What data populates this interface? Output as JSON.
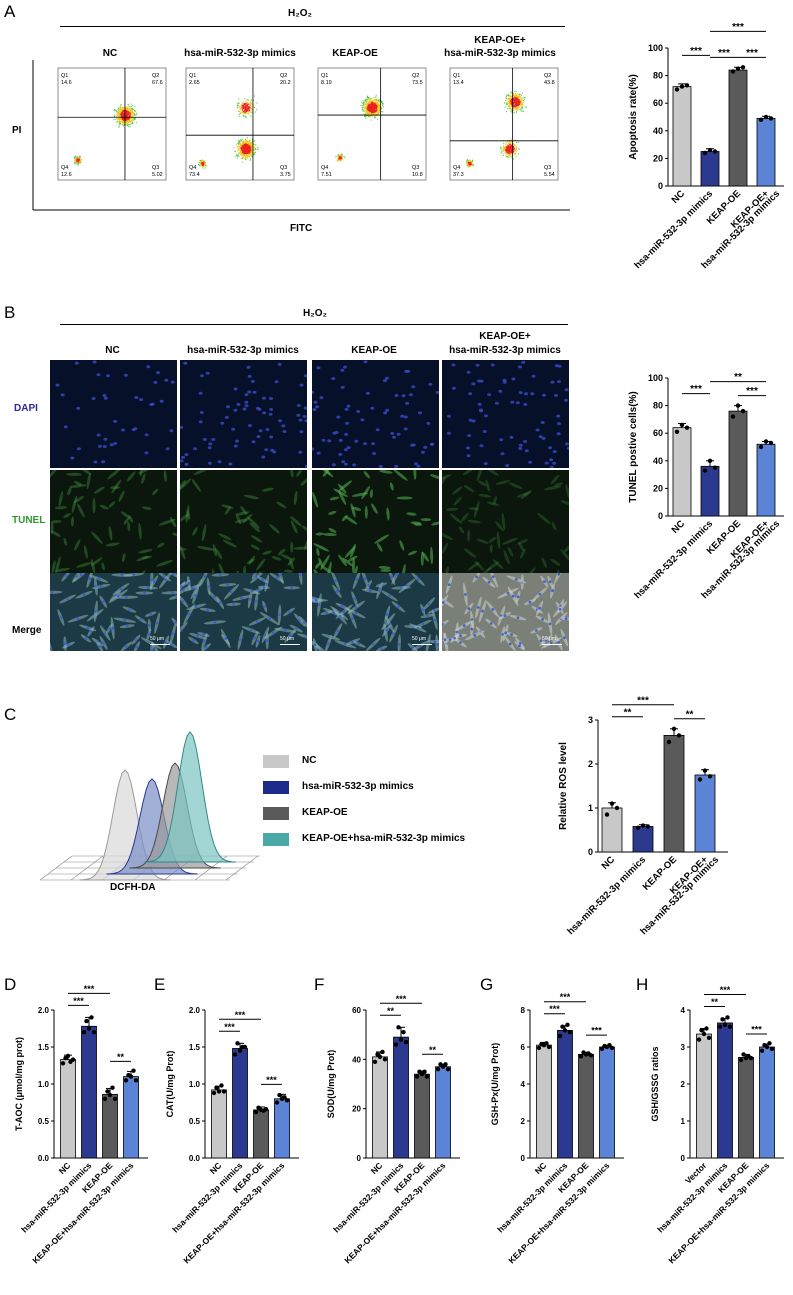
{
  "panels": {
    "A": "A",
    "B": "B",
    "C": "C",
    "D": "D",
    "E": "E",
    "F": "F",
    "G": "G",
    "H": "H"
  },
  "treatment_header": "H₂O₂",
  "groups": {
    "nc": "NC",
    "mimics": "hsa-miR-532-3p mimics",
    "keap": "KEAP-OE",
    "combo_line1": "KEAP-OE+",
    "combo_line2": "hsa-miR-532-3p mimics"
  },
  "flow": {
    "y_axis": "PI",
    "x_axis": "FITC",
    "plots": [
      {
        "q1": "Q1",
        "q1v": "14.6",
        "q2": "Q2",
        "q2v": "67.6",
        "q3": "Q3",
        "q3v": "5.02",
        "q4": "Q4",
        "q4v": "12.6"
      },
      {
        "q1": "Q1",
        "q1v": "2.65",
        "q2": "Q2",
        "q2v": "20.2",
        "q3": "Q3",
        "q3v": "3.75",
        "q4": "Q4",
        "q4v": "73.4"
      },
      {
        "q1": "Q1",
        "q1v": "8.19",
        "q2": "Q2",
        "q2v": "73.5",
        "q3": "Q3",
        "q3v": "10.8",
        "q4": "Q4",
        "q4v": "7.51"
      },
      {
        "q1": "Q1",
        "q1v": "13.4",
        "q2": "Q2",
        "q2v": "43.8",
        "q3": "Q3",
        "q3v": "5.54",
        "q4": "Q4",
        "q4v": "37.3"
      }
    ]
  },
  "tunel_rows": {
    "dapi": "DAPI",
    "tunel": "TUNEL",
    "merge": "Merge",
    "scale": "50 μm"
  },
  "ros_legend": {
    "nc": "NC",
    "mimics": "hsa-miR-532-3p mimics",
    "keap": "KEAP-OE",
    "combo": "KEAP-OE+hsa-miR-532-3p mimics",
    "xlabel": "DCFH-DA"
  },
  "colors": {
    "nc": "#c8c8c8",
    "mimics": "#2b3a8f",
    "keap": "#5a5a5a",
    "combo": "#5b84d6",
    "ros_combo": "#4aa8a6"
  },
  "chart_data": [
    {
      "id": "apoptosis",
      "type": "bar",
      "categories": [
        "NC",
        "hsa-miR-532-3p mimics",
        "KEAP-OE",
        "KEAP-OE+ hsa-miR-532-3p mimics"
      ],
      "values": [
        72,
        25,
        84,
        49
      ],
      "errors": [
        2,
        2,
        2,
        1.5
      ],
      "points": [
        [
          70,
          72,
          73
        ],
        [
          24,
          26,
          25
        ],
        [
          83,
          85,
          86
        ],
        [
          48,
          50,
          49
        ]
      ],
      "ylabel": "Apoptosis rate(%)",
      "ylim": [
        0,
        100
      ],
      "yticks": [
        0,
        20,
        40,
        60,
        80,
        100
      ],
      "sig": [
        [
          "0",
          "1",
          "***"
        ],
        [
          "1",
          "2",
          "***"
        ],
        [
          "1",
          "3",
          "***"
        ],
        [
          "2",
          "3",
          "***"
        ]
      ]
    },
    {
      "id": "tunel",
      "type": "bar",
      "categories": [
        "NC",
        "hsa-miR-532-3p mimics",
        "KEAP-OE",
        "KEAP-OE+ hsa-miR-532-3p mimics"
      ],
      "values": [
        64,
        36,
        76,
        52
      ],
      "errors": [
        3,
        4,
        4,
        2
      ],
      "points": [
        [
          61,
          66,
          64
        ],
        [
          33,
          40,
          35
        ],
        [
          72,
          80,
          76
        ],
        [
          50,
          54,
          53
        ]
      ],
      "ylabel": "TUNEL postive cells(%)",
      "ylim": [
        0,
        100
      ],
      "yticks": [
        0,
        20,
        40,
        60,
        80,
        100
      ],
      "sig": [
        [
          "0",
          "1",
          "***"
        ],
        [
          "1",
          "3",
          "**"
        ],
        [
          "2",
          "3",
          "***"
        ]
      ]
    },
    {
      "id": "ros",
      "type": "bar",
      "categories": [
        "NC",
        "hsa-miR-532-3p mimics",
        "KEAP-OE",
        "KEAP-OE+ hsa-miR-532-3p mimics"
      ],
      "values": [
        1.0,
        0.58,
        2.65,
        1.75
      ],
      "errors": [
        0.12,
        0.04,
        0.15,
        0.12
      ],
      "points": [
        [
          0.85,
          1.1,
          1.0
        ],
        [
          0.55,
          0.6,
          0.58
        ],
        [
          2.5,
          2.8,
          2.65
        ],
        [
          1.65,
          1.85,
          1.72
        ]
      ],
      "ylabel": "Relative ROS level",
      "ylim": [
        0,
        3
      ],
      "yticks": [
        0,
        1,
        2,
        3
      ],
      "sig": [
        [
          "0",
          "1",
          "**"
        ],
        [
          "0",
          "2",
          "***"
        ],
        [
          "2",
          "3",
          "**"
        ]
      ]
    },
    {
      "id": "taoc",
      "type": "bar",
      "categories": [
        "NC",
        "hsa-miR-532-3p mimics",
        "KEAP-OE",
        "KEAP-OE+hsa-miR-532-3p mimics"
      ],
      "values": [
        1.33,
        1.78,
        0.86,
        1.1
      ],
      "errors": [
        0.06,
        0.12,
        0.08,
        0.07
      ],
      "points": [
        [
          1.28,
          1.35,
          1.38,
          1.3,
          1.33
        ],
        [
          1.7,
          1.85,
          1.75,
          1.9,
          1.7
        ],
        [
          0.8,
          0.9,
          0.85,
          0.95,
          0.8
        ],
        [
          1.05,
          1.12,
          1.1,
          1.18,
          1.05
        ]
      ],
      "ylabel": "T-AOC (μmol/mg prot)",
      "ylim": [
        0,
        2.0
      ],
      "yticks": [
        0.0,
        0.5,
        1.0,
        1.5,
        2.0
      ],
      "sig": [
        [
          "0",
          "1",
          "***"
        ],
        [
          "0",
          "2",
          "***"
        ],
        [
          "2",
          "3",
          "**"
        ]
      ]
    },
    {
      "id": "cat",
      "type": "bar",
      "categories": [
        "NC",
        "hsa-miR-532-3p mimics",
        "KEAP-OE",
        "KEAP-OE+hsa-miR-532-3p mimics"
      ],
      "values": [
        0.92,
        1.48,
        0.65,
        0.8
      ],
      "errors": [
        0.05,
        0.07,
        0.04,
        0.06
      ],
      "points": [
        [
          0.88,
          0.95,
          0.9,
          0.98,
          0.9
        ],
        [
          1.4,
          1.55,
          1.45,
          1.5,
          1.5
        ],
        [
          0.62,
          0.68,
          0.65,
          0.64,
          0.66
        ],
        [
          0.75,
          0.85,
          0.8,
          0.82,
          0.78
        ]
      ],
      "ylabel": "CAT(U/mg Prot)",
      "ylim": [
        0,
        2.0
      ],
      "yticks": [
        0.0,
        0.5,
        1.0,
        1.5,
        2.0
      ],
      "sig": [
        [
          "0",
          "1",
          "***"
        ],
        [
          "0",
          "2",
          "***"
        ],
        [
          "2",
          "3",
          "***"
        ]
      ]
    },
    {
      "id": "sod",
      "type": "bar",
      "categories": [
        "NC",
        "hsa-miR-532-3p mimics",
        "KEAP-OE",
        "KEAP-OE+hsa-miR-532-3p mimics"
      ],
      "values": [
        41,
        49,
        34,
        37
      ],
      "errors": [
        2,
        4,
        1.2,
        1
      ],
      "points": [
        [
          39,
          42,
          41,
          43,
          40
        ],
        [
          46,
          53,
          48,
          51,
          47
        ],
        [
          33,
          35,
          34,
          35,
          33
        ],
        [
          36,
          38,
          37,
          38,
          36
        ]
      ],
      "ylabel": "SOD(U/mg Prot)",
      "ylim": [
        0,
        60
      ],
      "yticks": [
        0,
        20,
        40,
        60
      ],
      "sig": [
        [
          "0",
          "1",
          "**"
        ],
        [
          "0",
          "2",
          "***"
        ],
        [
          "2",
          "3",
          "**"
        ]
      ]
    },
    {
      "id": "gshpx",
      "type": "bar",
      "categories": [
        "NC",
        "hsa-miR-532-3p mimics",
        "KEAP-OE",
        "KEAP-OE+hsa-miR-532-3p mimics"
      ],
      "values": [
        6.1,
        6.9,
        5.6,
        6.0
      ],
      "errors": [
        0.15,
        0.25,
        0.12,
        0.1
      ],
      "points": [
        [
          5.95,
          6.15,
          6.1,
          6.2,
          6.0
        ],
        [
          6.6,
          7.1,
          6.9,
          7.2,
          6.8
        ],
        [
          5.5,
          5.7,
          5.6,
          5.65,
          5.55
        ],
        [
          5.9,
          6.05,
          6.0,
          6.1,
          5.95
        ]
      ],
      "ylabel": "GSH-Px(U/mg Prot)",
      "ylim": [
        0,
        8
      ],
      "yticks": [
        0,
        2,
        4,
        6,
        8
      ],
      "sig": [
        [
          "0",
          "1",
          "***"
        ],
        [
          "0",
          "2",
          "***"
        ],
        [
          "2",
          "3",
          "***"
        ]
      ]
    },
    {
      "id": "gsh_gssg",
      "type": "bar",
      "categories": [
        "Vector",
        "hsa-miR-532-3p mimics",
        "KEAP-OE",
        "KEAP-OE+hsa-miR-532-3p mimics"
      ],
      "values": [
        3.35,
        3.65,
        2.72,
        3.0
      ],
      "errors": [
        0.15,
        0.12,
        0.08,
        0.08
      ],
      "points": [
        [
          3.2,
          3.45,
          3.35,
          3.5,
          3.25
        ],
        [
          3.55,
          3.75,
          3.6,
          3.8,
          3.55
        ],
        [
          2.65,
          2.8,
          2.7,
          2.75,
          2.7
        ],
        [
          2.9,
          3.05,
          3.0,
          3.1,
          2.95
        ]
      ],
      "ylabel": "GSH/GSSG ratios",
      "ylim": [
        0,
        4
      ],
      "yticks": [
        0,
        1,
        2,
        3,
        4
      ],
      "sig": [
        [
          "0",
          "1",
          "**"
        ],
        [
          "0",
          "2",
          "***"
        ],
        [
          "2",
          "3",
          "***"
        ]
      ]
    }
  ]
}
